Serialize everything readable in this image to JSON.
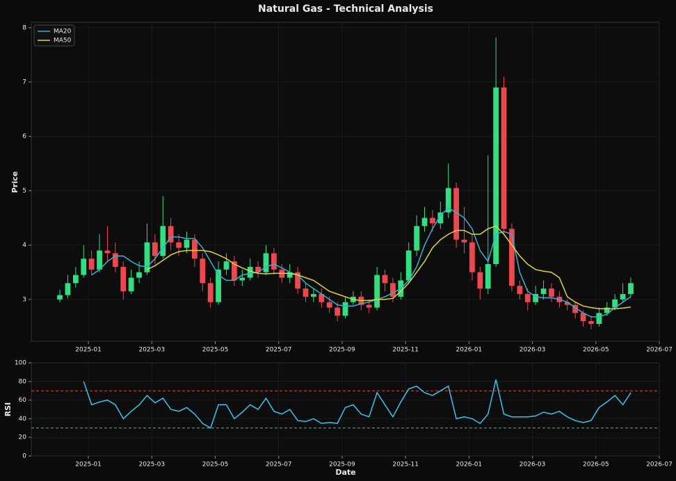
{
  "chart_data": [
    {
      "type": "candlestick",
      "title": "Natural Gas - Technical Analysis",
      "ylabel": "Price",
      "x": [
        -0.9,
        -0.65,
        -0.4,
        -0.15,
        0.1,
        0.35,
        0.6,
        0.85,
        1.1,
        1.35,
        1.6,
        1.85,
        2.1,
        2.35,
        2.6,
        2.85,
        3.1,
        3.35,
        3.6,
        3.85,
        4.1,
        4.35,
        4.6,
        4.85,
        5.1,
        5.35,
        5.6,
        5.85,
        6.1,
        6.35,
        6.6,
        6.85,
        7.1,
        7.35,
        7.6,
        7.85,
        8.1,
        8.35,
        8.6,
        8.85,
        9.1,
        9.35,
        9.6,
        9.85,
        10.1,
        10.35,
        10.6,
        10.85,
        11.1,
        11.35,
        11.6,
        11.85,
        12.1,
        12.35,
        12.6,
        12.85,
        13.1,
        13.35,
        13.6,
        13.85,
        14.1,
        14.35,
        14.6,
        14.85,
        15.1,
        15.35,
        15.6,
        15.85,
        16.1,
        16.35,
        16.6,
        16.85,
        17.1
      ],
      "open": [
        3.0,
        3.08,
        3.3,
        3.45,
        3.75,
        3.55,
        3.9,
        3.85,
        3.6,
        3.15,
        3.4,
        3.5,
        4.05,
        3.8,
        4.35,
        4.05,
        3.95,
        4.1,
        3.75,
        3.3,
        2.95,
        3.55,
        3.7,
        3.35,
        3.4,
        3.6,
        3.5,
        3.85,
        3.55,
        3.4,
        3.5,
        3.2,
        3.05,
        3.1,
        2.95,
        2.85,
        2.7,
        2.95,
        3.05,
        2.9,
        2.85,
        3.45,
        3.3,
        3.05,
        3.35,
        3.9,
        4.35,
        4.5,
        4.4,
        4.6,
        5.05,
        4.1,
        4.05,
        3.5,
        3.2,
        3.65,
        6.9,
        4.3,
        3.25,
        3.1,
        2.95,
        3.1,
        3.2,
        3.05,
        2.95,
        2.9,
        2.75,
        2.6,
        2.55,
        2.75,
        2.85,
        3.0,
        3.1
      ],
      "high": [
        3.18,
        3.45,
        3.6,
        4.0,
        3.9,
        4.2,
        4.35,
        4.05,
        3.7,
        3.55,
        3.7,
        4.4,
        4.2,
        4.9,
        4.5,
        4.2,
        4.25,
        4.2,
        3.85,
        3.4,
        3.7,
        3.85,
        3.8,
        3.55,
        3.75,
        3.7,
        4.0,
        3.95,
        3.65,
        3.65,
        3.6,
        3.3,
        3.2,
        3.2,
        3.05,
        2.95,
        3.05,
        3.15,
        3.15,
        3.0,
        3.6,
        3.55,
        3.4,
        3.5,
        4.05,
        4.55,
        4.7,
        4.65,
        4.8,
        5.5,
        5.15,
        4.7,
        4.2,
        3.6,
        5.65,
        7.82,
        7.1,
        4.4,
        3.35,
        3.2,
        3.25,
        3.35,
        3.3,
        3.15,
        3.0,
        2.95,
        2.8,
        2.7,
        2.85,
        2.95,
        3.1,
        3.3,
        3.4
      ],
      "low": [
        2.95,
        3.02,
        3.22,
        3.4,
        3.45,
        3.5,
        3.7,
        3.5,
        3.0,
        3.1,
        3.3,
        3.45,
        3.65,
        3.75,
        3.9,
        3.8,
        3.85,
        3.6,
        3.15,
        2.85,
        2.9,
        3.45,
        3.25,
        3.25,
        3.35,
        3.4,
        3.45,
        3.45,
        3.3,
        3.3,
        3.1,
        2.95,
        2.95,
        2.85,
        2.75,
        2.6,
        2.65,
        2.9,
        2.8,
        2.75,
        2.8,
        3.15,
        2.95,
        3.0,
        3.3,
        3.8,
        4.25,
        4.25,
        4.3,
        4.5,
        3.95,
        3.85,
        3.35,
        3.0,
        3.1,
        3.6,
        4.2,
        3.15,
        3.0,
        2.8,
        2.9,
        3.0,
        2.95,
        2.85,
        2.8,
        2.65,
        2.5,
        2.45,
        2.5,
        2.7,
        2.8,
        2.95,
        3.05
      ],
      "close": [
        3.08,
        3.3,
        3.45,
        3.75,
        3.55,
        3.9,
        3.85,
        3.6,
        3.15,
        3.4,
        3.5,
        4.05,
        3.8,
        4.35,
        4.05,
        3.95,
        4.1,
        3.75,
        3.3,
        2.95,
        3.55,
        3.7,
        3.35,
        3.4,
        3.6,
        3.5,
        3.85,
        3.55,
        3.4,
        3.5,
        3.2,
        3.05,
        3.1,
        2.95,
        2.85,
        2.7,
        2.95,
        3.05,
        2.9,
        2.85,
        3.45,
        3.3,
        3.05,
        3.35,
        3.9,
        4.35,
        4.5,
        4.4,
        4.6,
        5.05,
        4.1,
        4.05,
        3.5,
        3.2,
        3.65,
        6.9,
        4.3,
        3.25,
        3.1,
        2.95,
        3.1,
        3.2,
        3.05,
        2.95,
        2.9,
        2.75,
        2.6,
        2.55,
        2.75,
        2.85,
        3.0,
        3.1,
        3.3
      ],
      "up_color": "#2ee07f",
      "down_color": "#f0474f",
      "series": [
        {
          "name": "MA20",
          "color": "#2bb5d8",
          "values": [
            null,
            null,
            null,
            null,
            3.45,
            3.55,
            3.7,
            3.8,
            3.8,
            3.7,
            3.62,
            3.6,
            3.75,
            3.95,
            4.15,
            4.15,
            4.12,
            4.12,
            3.95,
            3.7,
            3.45,
            3.35,
            3.35,
            3.45,
            3.48,
            3.5,
            3.6,
            3.65,
            3.58,
            3.5,
            3.45,
            3.3,
            3.2,
            3.1,
            3.0,
            2.9,
            2.88,
            2.88,
            2.92,
            2.95,
            3.0,
            3.05,
            3.12,
            3.2,
            3.35,
            3.6,
            4.0,
            4.3,
            4.55,
            4.68,
            4.6,
            4.5,
            4.3,
            3.9,
            3.7,
            4.2,
            4.25,
            4.2,
            3.5,
            3.15,
            3.05,
            3.03,
            3.03,
            3.0,
            2.95,
            2.85,
            2.75,
            2.68,
            2.68,
            2.73,
            2.85,
            2.95,
            3.05
          ]
        },
        {
          "name": "MA50",
          "color": "#e3d631",
          "values": [
            null,
            null,
            null,
            null,
            null,
            null,
            null,
            null,
            null,
            null,
            null,
            3.55,
            3.62,
            3.72,
            3.82,
            3.88,
            3.9,
            3.9,
            3.9,
            3.88,
            3.82,
            3.75,
            3.65,
            3.58,
            3.52,
            3.48,
            3.47,
            3.48,
            3.48,
            3.48,
            3.45,
            3.4,
            3.35,
            3.25,
            3.15,
            3.1,
            3.05,
            3.0,
            2.98,
            2.98,
            3.0,
            3.0,
            3.02,
            3.15,
            3.3,
            3.5,
            3.7,
            3.95,
            4.1,
            4.2,
            4.27,
            4.27,
            4.2,
            4.2,
            4.3,
            4.35,
            4.2,
            4.0,
            3.8,
            3.65,
            3.55,
            3.52,
            3.5,
            3.4,
            3.05,
            2.95,
            2.88,
            2.85,
            2.83,
            2.83,
            2.83,
            2.84,
            2.86
          ]
        }
      ],
      "xlim": [
        -1.8,
        18
      ],
      "ylim": [
        2.23,
        8.1
      ],
      "xticks": [
        {
          "value": 0,
          "label": "2025-01"
        },
        {
          "value": 2,
          "label": "2025-03"
        },
        {
          "value": 4,
          "label": "2025-05"
        },
        {
          "value": 6,
          "label": "2025-07"
        },
        {
          "value": 8,
          "label": "2025-09"
        },
        {
          "value": 10,
          "label": "2025-11"
        },
        {
          "value": 12,
          "label": "2026-01"
        },
        {
          "value": 14,
          "label": "2026-03"
        },
        {
          "value": 16,
          "label": "2026-05"
        },
        {
          "value": 18,
          "label": "2026-07"
        }
      ],
      "yticks": [
        3,
        4,
        5,
        6,
        7,
        8
      ],
      "grid": true,
      "legend": "upper left"
    },
    {
      "type": "line",
      "ylabel": "RSI",
      "xlabel": "Date",
      "series": [
        {
          "color": "#2ec8f0",
          "values": [
            null,
            null,
            null,
            80,
            55,
            58,
            60,
            55,
            40,
            48,
            55,
            65,
            57,
            62,
            50,
            48,
            52,
            45,
            35,
            30,
            55,
            55,
            40,
            47,
            55,
            50,
            62,
            48,
            45,
            50,
            38,
            37,
            40,
            35,
            36,
            35,
            52,
            55,
            45,
            42,
            68,
            55,
            42,
            58,
            72,
            75,
            68,
            65,
            70,
            75,
            40,
            42,
            40,
            35,
            45,
            82,
            45,
            42,
            42,
            42,
            43,
            47,
            45,
            48,
            42,
            38,
            36,
            38,
            52,
            58,
            65,
            55,
            68
          ]
        }
      ],
      "hlines": [
        {
          "value": 70,
          "color": "#e0453f"
        },
        {
          "value": 30,
          "color": "#2ecc71"
        }
      ],
      "ylim": [
        0,
        100
      ],
      "yticks": [
        0,
        20,
        40,
        60,
        80,
        100
      ],
      "grid": true
    }
  ]
}
